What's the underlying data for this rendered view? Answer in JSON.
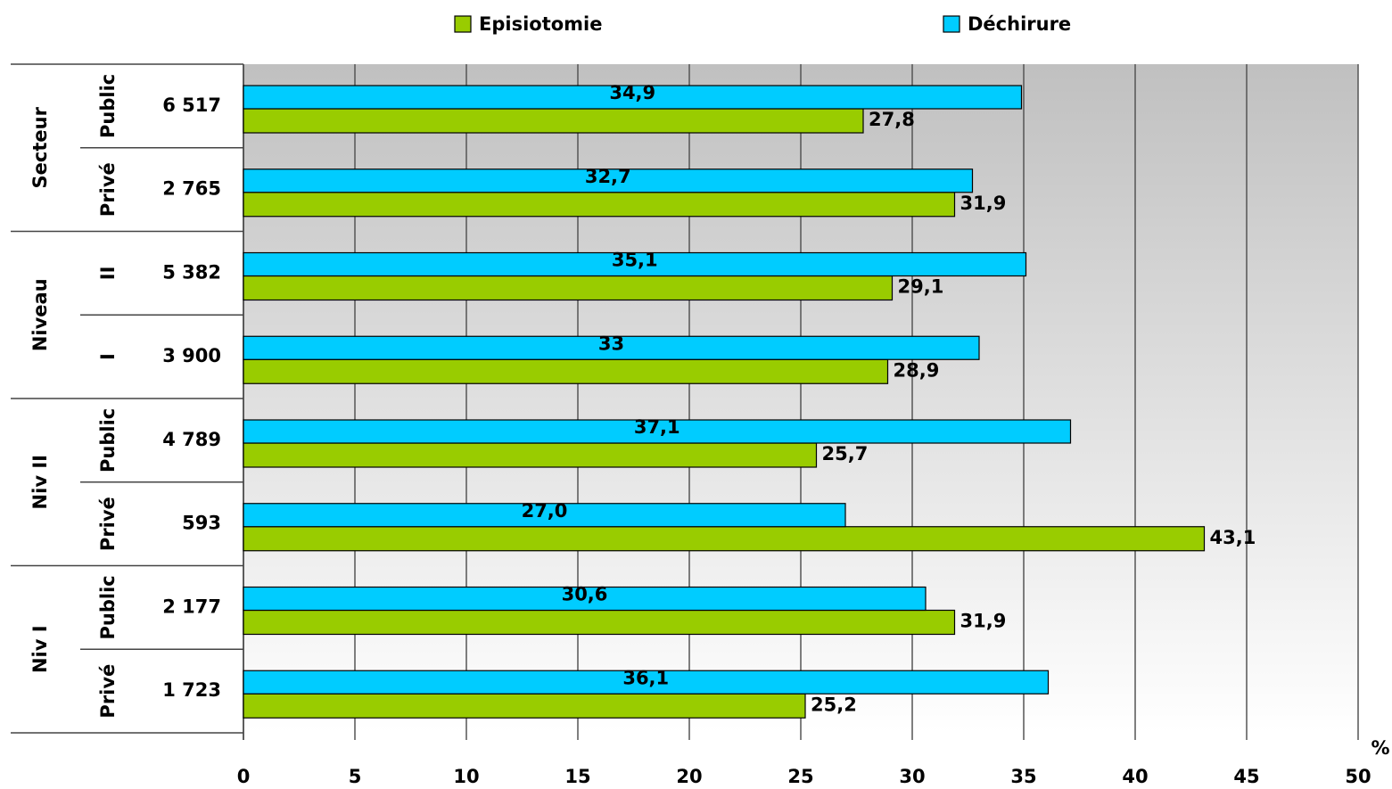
{
  "chart_data": {
    "type": "bar",
    "orientation": "horizontal",
    "groups": [
      "Secteur",
      "Niveau",
      "Niv II",
      "Niv I"
    ],
    "categories": [
      "Public",
      "Privé",
      "II",
      "I",
      "Public",
      "Privé",
      "Public",
      "Privé"
    ],
    "counts": [
      "6 517",
      "2 765",
      "5 382",
      "3 900",
      "4 789",
      "593",
      "2 177",
      "1 723"
    ],
    "series": [
      {
        "name": "Episiotomie",
        "color": "#99cc00",
        "values": [
          27.8,
          31.9,
          29.1,
          28.9,
          25.7,
          43.1,
          31.9,
          25.2
        ],
        "value_labels": [
          "27,8",
          "31,9",
          "29,1",
          "28,9",
          "25,7",
          "43,1",
          "31,9",
          "25,2"
        ]
      },
      {
        "name": "Déchirure",
        "color": "#00ccff",
        "values": [
          34.9,
          32.7,
          35.1,
          33,
          37.1,
          27.0,
          30.6,
          36.1
        ],
        "value_labels": [
          "34,9",
          "32,7",
          "35,1",
          "33",
          "37,1",
          "27,0",
          "30,6",
          "36,1"
        ]
      }
    ],
    "xlabel": "%",
    "xlim": [
      0,
      50
    ],
    "xticks": [
      0,
      5,
      10,
      15,
      20,
      25,
      30,
      35,
      40,
      45,
      50
    ],
    "grid": true,
    "legend": "top"
  }
}
